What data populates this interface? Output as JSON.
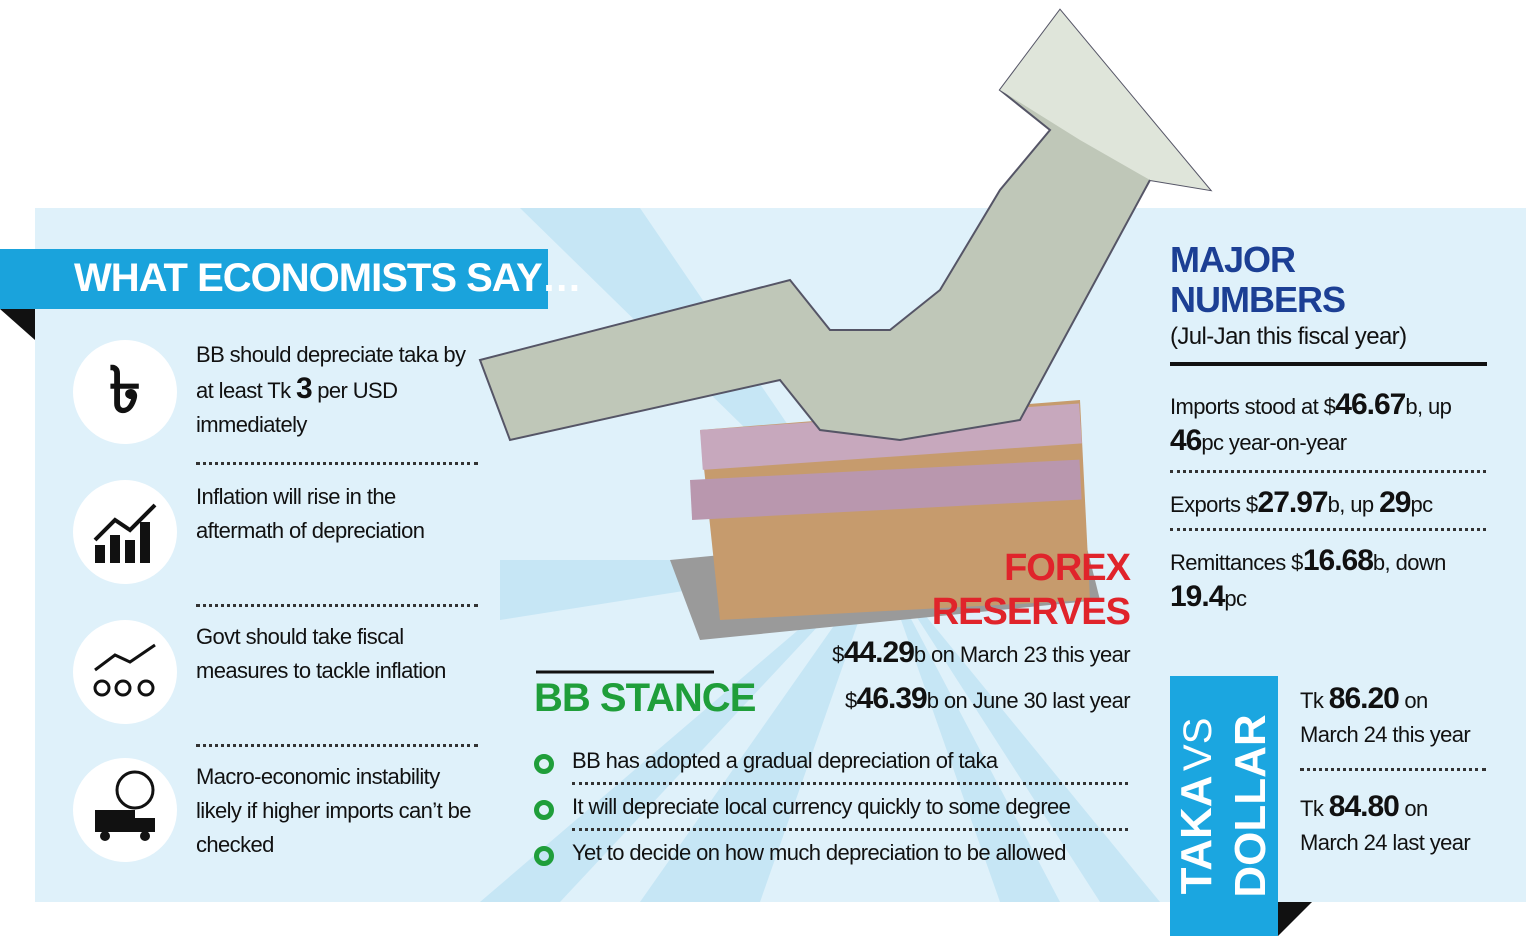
{
  "economists": {
    "title": "WHAT ECONOMISTS SAY…",
    "items": [
      [
        "BB should depreciate taka by at least Tk ",
        "3",
        " per USD immediately"
      ],
      [
        "Inflation will rise in the aftermath of depreciation"
      ],
      [
        "Govt should take fiscal measures to tackle inflation"
      ],
      [
        "Macro-economic instability likely if higher imports can’t be checked"
      ]
    ]
  },
  "forex": {
    "title": "FOREX RESERVES",
    "lines": [
      [
        "$",
        "44.29",
        "b on March 23 this year"
      ],
      [
        "$",
        "46.39",
        "b on June 30 last year"
      ]
    ]
  },
  "bb_stance": {
    "title": "BB STANCE",
    "items": [
      "BB has adopted a gradual depreciation of taka",
      "It will depreciate local currency quickly to some degree",
      "Yet to decide on how much depreciation to be allowed"
    ]
  },
  "major_numbers": {
    "title": "MAJOR NUMBERS",
    "subtitle": "(Jul-Jan this fiscal year)",
    "items": [
      [
        "Imports stood at $",
        "46.67",
        "b, up ",
        "46",
        "pc year-on-year"
      ],
      [
        "Exports $",
        "27.97",
        "b, up ",
        "29",
        "pc"
      ],
      [
        "Remittances $",
        "16.68",
        "b, down ",
        "19.4",
        "pc"
      ]
    ]
  },
  "taka_vs_dollar": {
    "label_top": "TAKA",
    "label_mid": "VS",
    "label_bottom": "DOLLAR",
    "items": [
      [
        "Tk ",
        "86.20",
        " on March 24 this year"
      ],
      [
        "Tk ",
        "84.80",
        " on March 24 last year"
      ]
    ]
  }
}
